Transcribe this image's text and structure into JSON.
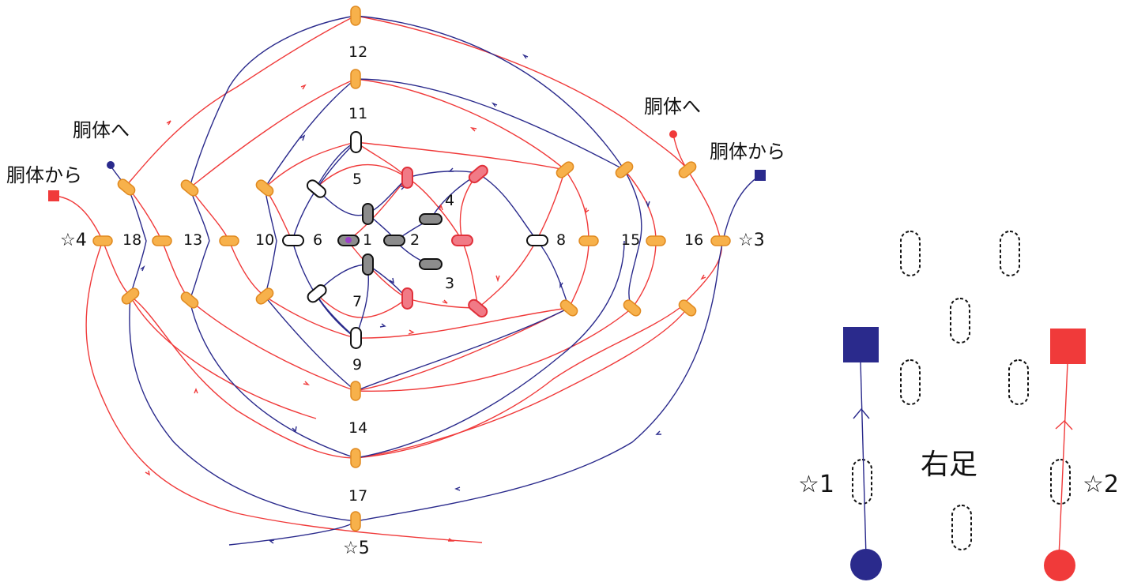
{
  "pins": {
    "numbers": [
      "1",
      "2",
      "3",
      "4",
      "5",
      "6",
      "7",
      "8",
      "9",
      "10",
      "11",
      "12",
      "13",
      "14",
      "15",
      "16",
      "17",
      "18"
    ],
    "stars": [
      "☆1",
      "☆2",
      "☆3",
      "☆4",
      "☆5"
    ]
  },
  "labels": {
    "to_body_left": "胴体へ",
    "from_body_left": "胴体から",
    "to_body_right": "胴体へ",
    "from_body_right": "胴体から",
    "right_foot": "右足"
  },
  "colors": {
    "red_thread": "#f03a3a",
    "blue_thread": "#2a2a8c",
    "orange_pin": "#f7b14b",
    "gray_pin": "#8c8c8c",
    "pink_pin": "#f17a86"
  }
}
